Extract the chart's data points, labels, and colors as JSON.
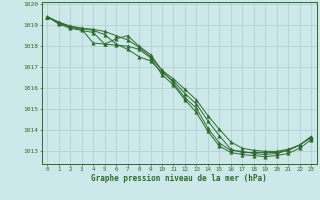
{
  "x": [
    0,
    1,
    2,
    3,
    4,
    5,
    6,
    7,
    8,
    9,
    10,
    11,
    12,
    13,
    14,
    15,
    16,
    17,
    18,
    19,
    20,
    21,
    22,
    23
  ],
  "series": [
    [
      1019.4,
      1019.1,
      1018.9,
      1018.8,
      1018.15,
      1018.1,
      1018.35,
      1018.5,
      1018.0,
      1017.6,
      1016.85,
      1016.25,
      1015.55,
      1015.05,
      1014.1,
      1013.4,
      1013.05,
      1013.0,
      1012.9,
      1012.85,
      1012.9,
      1013.05,
      1013.3,
      1013.7
    ],
    [
      1019.4,
      1019.05,
      1018.85,
      1018.75,
      1018.65,
      1018.1,
      1018.05,
      1018.0,
      1017.85,
      1017.45,
      1016.65,
      1016.15,
      1015.45,
      1014.85,
      1013.95,
      1013.25,
      1012.95,
      1012.85,
      1012.8,
      1012.75,
      1012.8,
      1012.9,
      1013.15,
      1013.55
    ],
    [
      1019.4,
      1019.1,
      1018.95,
      1018.85,
      1018.75,
      1018.55,
      1018.1,
      1017.85,
      1017.5,
      1017.3,
      1016.75,
      1016.35,
      1015.75,
      1015.25,
      1014.45,
      1013.75,
      1013.1,
      1012.95,
      1012.95,
      1012.95,
      1012.95,
      1013.05,
      1013.3,
      1013.65
    ],
    [
      1019.4,
      1019.15,
      1018.95,
      1018.85,
      1018.8,
      1018.7,
      1018.5,
      1018.3,
      1017.95,
      1017.5,
      1016.85,
      1016.45,
      1015.95,
      1015.45,
      1014.7,
      1014.05,
      1013.45,
      1013.15,
      1013.05,
      1013.0,
      1013.0,
      1013.1,
      1013.3,
      1013.7
    ]
  ],
  "ylim": [
    1012.4,
    1020.1
  ],
  "yticks": [
    1013,
    1014,
    1015,
    1016,
    1017,
    1018,
    1019,
    1020
  ],
  "xlim": [
    -0.5,
    23.5
  ],
  "xticks": [
    0,
    1,
    2,
    3,
    4,
    5,
    6,
    7,
    8,
    9,
    10,
    11,
    12,
    13,
    14,
    15,
    16,
    17,
    18,
    19,
    20,
    21,
    22,
    23
  ],
  "xlabel": "Graphe pression niveau de la mer (hPa)",
  "line_color": "#2d6a2d",
  "marker": "^",
  "marker_size": 2.5,
  "bg_color": "#cce8e8",
  "grid_color": "#b0cccc",
  "label_color": "#2d6a2d"
}
